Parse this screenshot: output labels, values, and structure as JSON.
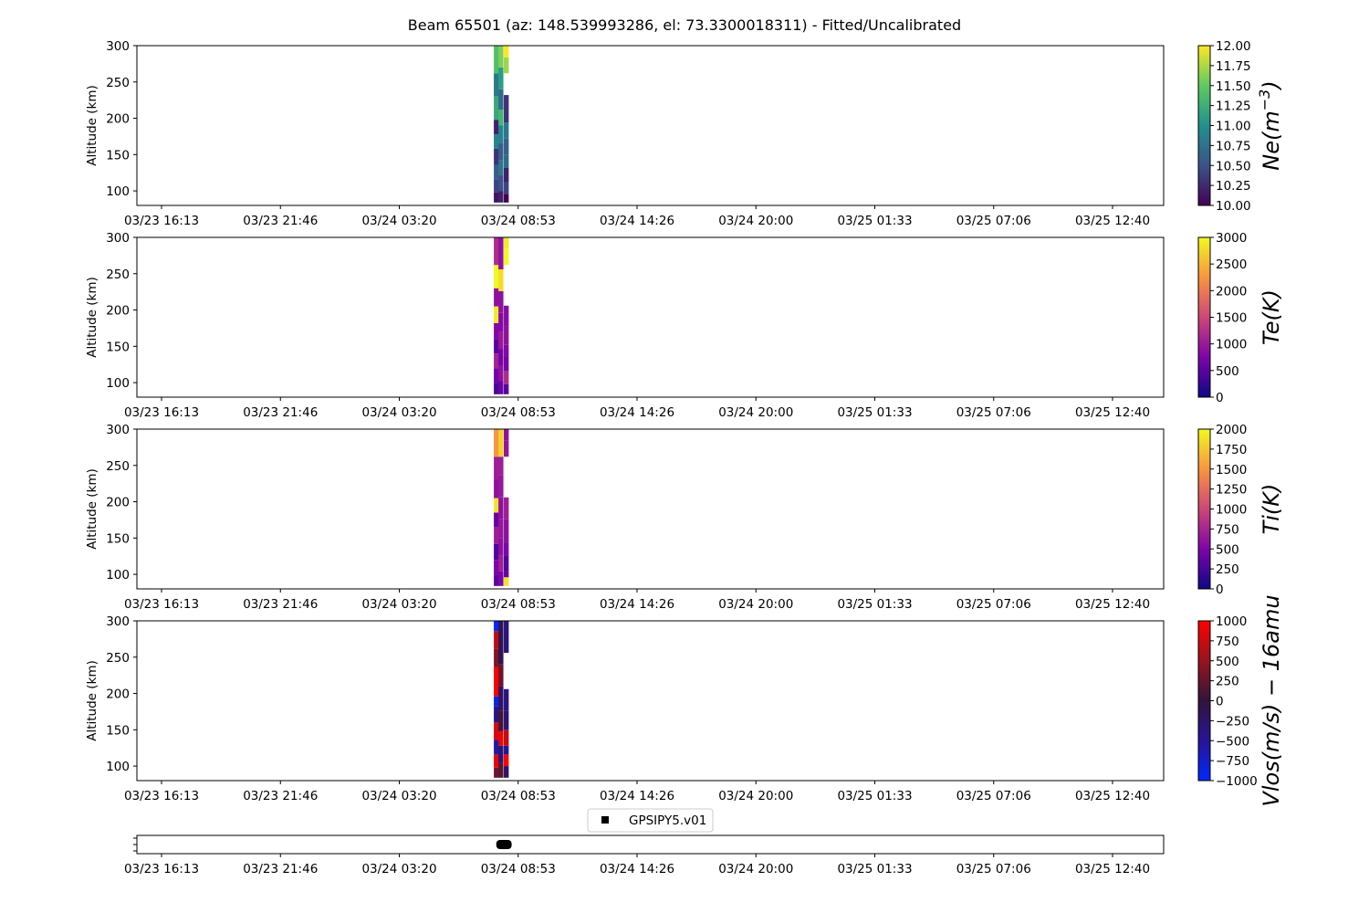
{
  "figure": {
    "title": "Beam 65501 (az: 148.539993286, el: 73.3300018311) - Fitted/Uncalibrated"
  },
  "colors": {
    "axis": "#000000",
    "background": "#ffffff"
  },
  "chart_data": [
    {
      "type": "heatmap",
      "name": "ne-panel",
      "title": "",
      "xlabel": "",
      "ylabel": "Altitude (km)",
      "ylim": [
        80,
        300
      ],
      "yticks": [
        100,
        150,
        200,
        250,
        300
      ],
      "xticks": [
        "03/23 16:13",
        "03/23 21:46",
        "03/24 03:20",
        "03/24 08:53",
        "03/24 14:26",
        "03/24 20:00",
        "03/25 01:33",
        "03/25 07:06",
        "03/25 12:40"
      ],
      "colormap": "viridis",
      "colorbar": {
        "label_main": "Ne(m",
        "label_sup": "−3",
        "label_end": ")",
        "range": [
          10.0,
          12.0
        ],
        "ticks": [
          "10.00",
          "10.25",
          "10.50",
          "10.75",
          "11.00",
          "11.25",
          "11.50",
          "11.75",
          "12.00"
        ]
      },
      "columns": [
        {
          "x": "03/24 07:52",
          "cells": [
            [
              84,
              98,
              10.1
            ],
            [
              98,
              116,
              10.4
            ],
            [
              116,
              136,
              10.6
            ],
            [
              136,
              158,
              10.3
            ],
            [
              158,
              178,
              10.9
            ],
            [
              178,
              198,
              10.2
            ],
            [
              198,
              230,
              11.2
            ],
            [
              230,
              262,
              10.8
            ],
            [
              262,
              300,
              11.4
            ]
          ]
        },
        {
          "x": "03/24 08:05",
          "cells": [
            [
              84,
              100,
              10.2
            ],
            [
              100,
              122,
              10.5
            ],
            [
              122,
              142,
              10.8
            ],
            [
              142,
              166,
              10.6
            ],
            [
              166,
              190,
              10.9
            ],
            [
              190,
              212,
              11.3
            ],
            [
              212,
              240,
              10.7
            ],
            [
              240,
              270,
              11.1
            ],
            [
              270,
              300,
              11.6
            ]
          ]
        },
        {
          "x": "03/24 08:20",
          "cells": [
            [
              84,
              96,
              10.0
            ],
            [
              96,
              112,
              10.4
            ],
            [
              112,
              132,
              10.2
            ],
            [
              132,
              150,
              10.7
            ],
            [
              150,
              172,
              10.6
            ],
            [
              172,
              194,
              10.8
            ],
            [
              194,
              232,
              10.3
            ],
            [
              262,
              284,
              11.7
            ],
            [
              284,
              300,
              12.0
            ]
          ]
        }
      ]
    },
    {
      "type": "heatmap",
      "name": "te-panel",
      "title": "",
      "xlabel": "",
      "ylabel": "Altitude (km)",
      "ylim": [
        80,
        300
      ],
      "yticks": [
        100,
        150,
        200,
        250,
        300
      ],
      "xticks": [
        "03/23 16:13",
        "03/23 21:46",
        "03/24 03:20",
        "03/24 08:53",
        "03/24 14:26",
        "03/24 20:00",
        "03/25 01:33",
        "03/25 07:06",
        "03/25 12:40"
      ],
      "colormap": "plasma",
      "colorbar": {
        "label_main": "Te(K)",
        "label_sup": "",
        "label_end": "",
        "range": [
          0,
          3000
        ],
        "ticks": [
          "0",
          "500",
          "1000",
          "1500",
          "2000",
          "2500",
          "3000"
        ]
      },
      "columns": [
        {
          "x": "03/24 07:52",
          "cells": [
            [
              84,
              100,
              400
            ],
            [
              100,
              120,
              700
            ],
            [
              120,
              140,
              1100
            ],
            [
              140,
              160,
              500
            ],
            [
              160,
              182,
              800
            ],
            [
              182,
              205,
              2900
            ],
            [
              205,
              230,
              900
            ],
            [
              230,
              262,
              3000
            ],
            [
              262,
              300,
              1200
            ]
          ]
        },
        {
          "x": "03/24 08:05",
          "cells": [
            [
              84,
              102,
              600
            ],
            [
              102,
              124,
              900
            ],
            [
              124,
              146,
              700
            ],
            [
              146,
              170,
              1000
            ],
            [
              170,
              196,
              800
            ],
            [
              196,
              226,
              900
            ],
            [
              226,
              256,
              2800
            ],
            [
              256,
              300,
              900
            ]
          ]
        },
        {
          "x": "03/24 08:20",
          "cells": [
            [
              84,
              98,
              500
            ],
            [
              98,
              116,
              1200
            ],
            [
              116,
              136,
              700
            ],
            [
              136,
              152,
              800
            ],
            [
              152,
              178,
              900
            ],
            [
              178,
              206,
              850
            ],
            [
              262,
              284,
              3000
            ],
            [
              284,
              300,
              2900
            ]
          ]
        }
      ]
    },
    {
      "type": "heatmap",
      "name": "ti-panel",
      "title": "",
      "xlabel": "",
      "ylabel": "Altitude (km)",
      "ylim": [
        80,
        300
      ],
      "yticks": [
        100,
        150,
        200,
        250,
        300
      ],
      "xticks": [
        "03/23 16:13",
        "03/23 21:46",
        "03/24 03:20",
        "03/24 08:53",
        "03/24 14:26",
        "03/24 20:00",
        "03/25 01:33",
        "03/25 07:06",
        "03/25 12:40"
      ],
      "colormap": "plasma",
      "colorbar": {
        "label_main": "Ti(K)",
        "label_sup": "",
        "label_end": "",
        "range": [
          0,
          2000
        ],
        "ticks": [
          "0",
          "250",
          "500",
          "750",
          "1000",
          "1250",
          "1500",
          "1750",
          "2000"
        ]
      },
      "columns": [
        {
          "x": "03/24 07:52",
          "cells": [
            [
              84,
              100,
              350
            ],
            [
              100,
              120,
              500
            ],
            [
              120,
              142,
              300
            ],
            [
              142,
              165,
              700
            ],
            [
              165,
              185,
              400
            ],
            [
              185,
              205,
              1900
            ],
            [
              205,
              232,
              600
            ],
            [
              232,
              262,
              700
            ],
            [
              262,
              300,
              1500
            ]
          ]
        },
        {
          "x": "03/24 08:05",
          "cells": [
            [
              84,
              104,
              500
            ],
            [
              104,
              126,
              700
            ],
            [
              126,
              150,
              600
            ],
            [
              150,
              176,
              650
            ],
            [
              176,
              206,
              600
            ],
            [
              206,
              236,
              650
            ],
            [
              236,
              262,
              700
            ],
            [
              262,
              300,
              1800
            ]
          ]
        },
        {
          "x": "03/24 08:20",
          "cells": [
            [
              84,
              96,
              1900
            ],
            [
              96,
              104,
              400
            ],
            [
              104,
              126,
              300
            ],
            [
              126,
              144,
              500
            ],
            [
              144,
              176,
              600
            ],
            [
              176,
              206,
              700
            ],
            [
              262,
              284,
              650
            ],
            [
              284,
              300,
              600
            ]
          ]
        }
      ]
    },
    {
      "type": "heatmap",
      "name": "vlos-panel",
      "title": "",
      "xlabel": "",
      "ylabel": "Altitude (km)",
      "ylim": [
        80,
        300
      ],
      "yticks": [
        100,
        150,
        200,
        250,
        300
      ],
      "xticks": [
        "03/23 16:13",
        "03/23 21:46",
        "03/24 03:20",
        "03/24 08:53",
        "03/24 14:26",
        "03/24 20:00",
        "03/25 01:33",
        "03/25 07:06",
        "03/25 12:40"
      ],
      "colormap": "bwr-dark",
      "colorbar": {
        "label_main": "Vlos(m/s) − 16amu",
        "label_sup": "",
        "label_end": "",
        "range": [
          -1000,
          1000
        ],
        "ticks": [
          "−1000",
          "−750",
          "−500",
          "−250",
          "0",
          "250",
          "500",
          "750",
          "1000"
        ]
      },
      "columns": [
        {
          "x": "03/24 07:52",
          "cells": [
            [
              84,
              98,
              300
            ],
            [
              98,
              116,
              900
            ],
            [
              116,
              136,
              -600
            ],
            [
              136,
              160,
              800
            ],
            [
              160,
              182,
              -400
            ],
            [
              182,
              196,
              -900
            ],
            [
              196,
              236,
              1000
            ],
            [
              236,
              262,
              400
            ],
            [
              262,
              286,
              700
            ],
            [
              286,
              300,
              -1000
            ]
          ]
        },
        {
          "x": "03/24 08:05",
          "cells": [
            [
              84,
              104,
              200
            ],
            [
              104,
              128,
              -300
            ],
            [
              128,
              148,
              900
            ],
            [
              148,
              176,
              100
            ],
            [
              176,
              210,
              -200
            ],
            [
              210,
              240,
              300
            ],
            [
              240,
              300,
              -100
            ]
          ]
        },
        {
          "x": "03/24 08:20",
          "cells": [
            [
              84,
              100,
              -200
            ],
            [
              100,
              116,
              1000
            ],
            [
              116,
              128,
              -500
            ],
            [
              128,
              150,
              700
            ],
            [
              150,
              176,
              -300
            ],
            [
              176,
              206,
              -400
            ],
            [
              256,
              300,
              -350
            ]
          ]
        }
      ]
    },
    {
      "type": "scatter",
      "name": "gps-panel",
      "title": "",
      "xlabel": "",
      "ylabel": "",
      "xticks": [
        "03/23 16:13",
        "03/23 21:46",
        "03/24 03:20",
        "03/24 08:53",
        "03/24 14:26",
        "03/24 20:00",
        "03/25 01:33",
        "03/25 07:06",
        "03/25 12:40"
      ],
      "legend": {
        "placement": "top-center",
        "entries": [
          "GPSIPY5.v01"
        ]
      },
      "series": [
        {
          "name": "GPSIPY5.v01",
          "marker": "square",
          "color": "#000000",
          "x_start": "03/24 07:52",
          "x_end": "03/24 08:35"
        }
      ]
    }
  ]
}
